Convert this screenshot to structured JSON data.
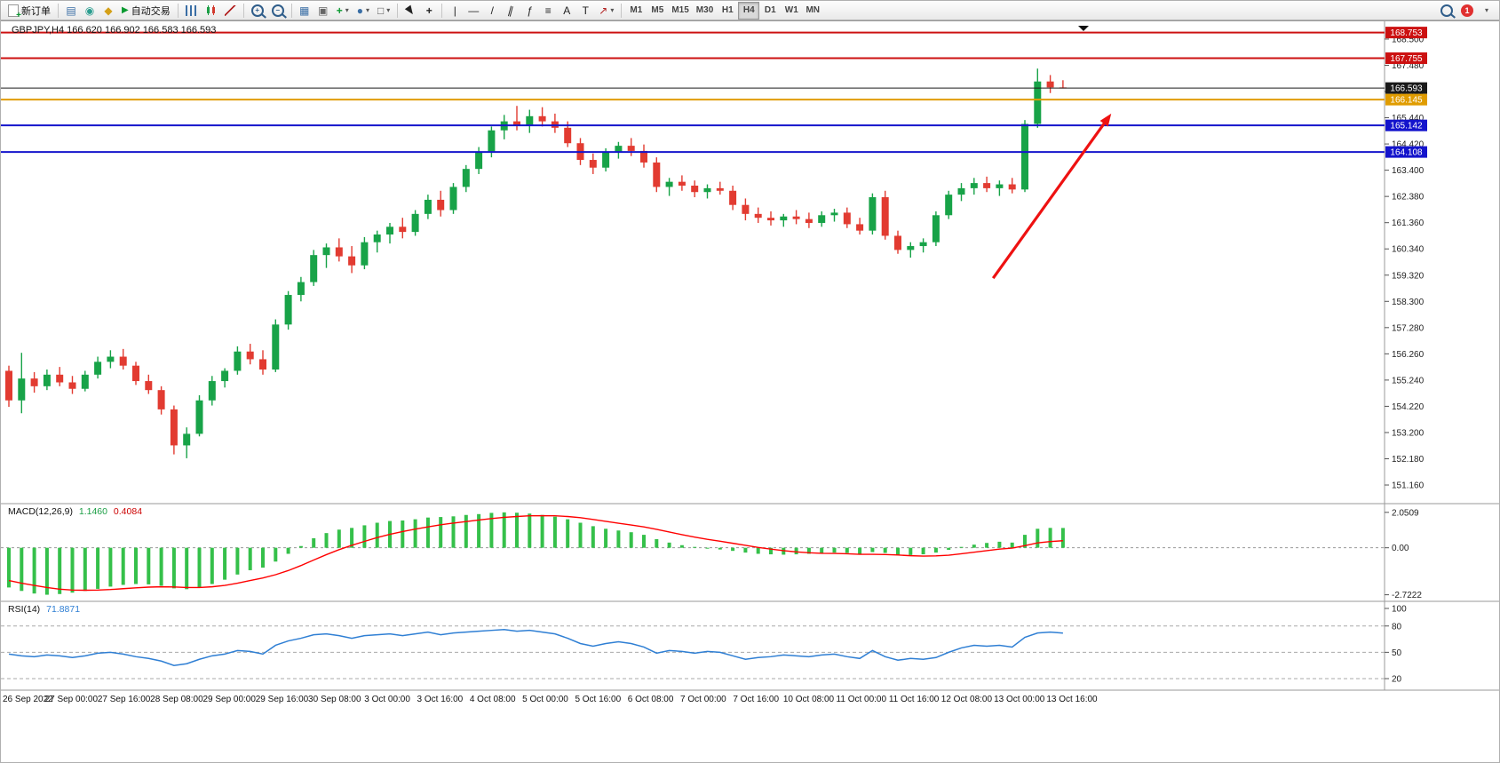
{
  "toolbar": {
    "new_order_label": "新订单",
    "autotrading_label": "自动交易",
    "timeframes": [
      "M1",
      "M5",
      "M15",
      "M30",
      "H1",
      "H4",
      "D1",
      "W1",
      "MN"
    ],
    "active_timeframe": "H4",
    "notification_count": "1"
  },
  "glyphs": {
    "plus": "+",
    "minus": "−",
    "play": "▶",
    "diamond": "◆",
    "grid": "▦",
    "dot": "◉",
    "tiles": "▣",
    "rows": "▤",
    "circle": "●",
    "square": "□",
    "cross": "+",
    "vline": "|",
    "hline": "—",
    "slash": "/",
    "parallel": "∥",
    "fibo": "ƒ",
    "list": "≡",
    "letter_a": "A",
    "letter_t": "T",
    "arrow_ne": "↗",
    "caret": "▾"
  },
  "chart": {
    "title": "GBPJPY,H4 166.620 166.902 166.583 166.593",
    "symbol": "GBPJPY",
    "timeframe": "H4",
    "current_price": "166.593",
    "levels": [
      {
        "value": 168.753,
        "label": "168.753",
        "color": "#cc1111",
        "width": 2
      },
      {
        "value": 167.755,
        "label": "167.755",
        "color": "#cc1111",
        "width": 2
      },
      {
        "value": 166.593,
        "label": "166.593",
        "color": "#1a1a1a",
        "width": 1
      },
      {
        "value": 166.145,
        "label": "166.145",
        "color": "#e09c00",
        "width": 2
      },
      {
        "value": 165.142,
        "label": "165.142",
        "color": "#1414cc",
        "width": 2
      },
      {
        "value": 164.108,
        "label": "164.108",
        "color": "#1414cc",
        "width": 2
      }
    ],
    "y_ticks": [
      "168.500",
      "167.480",
      "166.460",
      "165.440",
      "164.420",
      "163.400",
      "162.380",
      "161.360",
      "160.340",
      "159.320",
      "158.300",
      "157.280",
      "156.260",
      "155.240",
      "154.220",
      "153.200",
      "152.180",
      "151.160"
    ]
  },
  "indicators": {
    "macd": {
      "name": "MACD(12,26,9)",
      "main": "1.1460",
      "signal": "0.4084",
      "scale": [
        "2.0509",
        "0.00",
        "-2.7222"
      ]
    },
    "rsi": {
      "name": "RSI(14)",
      "value": "71.8871",
      "scale": [
        "100",
        "80",
        "50",
        "20"
      ],
      "guide_levels": [
        80,
        50,
        20
      ]
    }
  },
  "colors": {
    "up": "#18a348",
    "down": "#e23b31",
    "macd": "#35c04a",
    "signal": "#ff0000",
    "rsi": "#2f7fd4",
    "arrow": "#ee1111",
    "frame": "#9a9a9a",
    "axis_text": "#222222"
  },
  "time_axis": [
    "26 Sep 2022",
    "27 Sep 00:00",
    "27 Sep 16:00",
    "28 Sep 08:00",
    "29 Sep 00:00",
    "29 Sep 16:00",
    "30 Sep 08:00",
    "3 Oct 00:00",
    "3 Oct 16:00",
    "4 Oct 08:00",
    "5 Oct 00:00",
    "5 Oct 16:00",
    "6 Oct 08:00",
    "7 Oct 00:00",
    "7 Oct 16:00",
    "10 Oct 08:00",
    "11 Oct 00:00",
    "11 Oct 16:00",
    "12 Oct 08:00",
    "13 Oct 00:00",
    "13 Oct 16:00"
  ],
  "chart_data": [
    {
      "type": "candlestick",
      "symbol": "GBPJPY",
      "timeframe": "H4",
      "ylim": [
        150.47,
        169.12
      ],
      "candles": [
        [
          155.6,
          155.8,
          154.2,
          154.45
        ],
        [
          154.45,
          156.3,
          153.95,
          155.3
        ],
        [
          155.3,
          155.55,
          154.75,
          155.0
        ],
        [
          155.0,
          155.65,
          154.85,
          155.45
        ],
        [
          155.45,
          155.75,
          155.0,
          155.15
        ],
        [
          155.15,
          155.4,
          154.7,
          154.9
        ],
        [
          154.9,
          155.6,
          154.8,
          155.45
        ],
        [
          155.45,
          156.15,
          155.3,
          155.95
        ],
        [
          155.95,
          156.4,
          155.7,
          156.15
        ],
        [
          156.15,
          156.45,
          155.65,
          155.8
        ],
        [
          155.8,
          155.95,
          155.05,
          155.2
        ],
        [
          155.2,
          155.45,
          154.7,
          154.85
        ],
        [
          154.85,
          155.0,
          153.9,
          154.1
        ],
        [
          154.1,
          154.25,
          152.35,
          152.7
        ],
        [
          152.7,
          153.4,
          152.2,
          153.15
        ],
        [
          153.15,
          154.65,
          153.05,
          154.45
        ],
        [
          154.45,
          155.4,
          154.25,
          155.2
        ],
        [
          155.2,
          155.7,
          154.95,
          155.6
        ],
        [
          155.6,
          156.55,
          155.45,
          156.35
        ],
        [
          156.35,
          156.65,
          155.85,
          156.05
        ],
        [
          156.05,
          156.4,
          155.45,
          155.65
        ],
        [
          155.65,
          157.6,
          155.55,
          157.4
        ],
        [
          157.4,
          158.7,
          157.2,
          158.55
        ],
        [
          158.55,
          159.25,
          158.3,
          159.05
        ],
        [
          159.05,
          160.3,
          158.9,
          160.1
        ],
        [
          160.1,
          160.55,
          159.6,
          160.4
        ],
        [
          160.4,
          160.75,
          159.85,
          160.05
        ],
        [
          160.05,
          160.45,
          159.4,
          159.7
        ],
        [
          159.7,
          160.8,
          159.55,
          160.6
        ],
        [
          160.6,
          161.05,
          160.2,
          160.9
        ],
        [
          160.9,
          161.35,
          160.55,
          161.2
        ],
        [
          161.2,
          161.55,
          160.75,
          161.0
        ],
        [
          161.0,
          161.85,
          160.85,
          161.7
        ],
        [
          161.7,
          162.45,
          161.5,
          162.25
        ],
        [
          162.25,
          162.6,
          161.6,
          161.85
        ],
        [
          161.85,
          162.9,
          161.7,
          162.75
        ],
        [
          162.75,
          163.6,
          162.55,
          163.45
        ],
        [
          163.45,
          164.3,
          163.25,
          164.1
        ],
        [
          164.1,
          165.1,
          163.9,
          164.95
        ],
        [
          164.95,
          165.55,
          164.6,
          165.3
        ],
        [
          165.3,
          165.9,
          164.95,
          165.15
        ],
        [
          165.15,
          165.75,
          164.85,
          165.5
        ],
        [
          165.5,
          165.85,
          165.1,
          165.3
        ],
        [
          165.3,
          165.6,
          164.85,
          165.05
        ],
        [
          165.05,
          165.3,
          164.3,
          164.45
        ],
        [
          164.45,
          164.65,
          163.6,
          163.8
        ],
        [
          163.8,
          164.05,
          163.25,
          163.5
        ],
        [
          163.5,
          164.25,
          163.35,
          164.1
        ],
        [
          164.1,
          164.5,
          163.85,
          164.35
        ],
        [
          164.35,
          164.65,
          163.95,
          164.15
        ],
        [
          164.15,
          164.4,
          163.5,
          163.7
        ],
        [
          163.7,
          163.9,
          162.55,
          162.75
        ],
        [
          162.75,
          163.1,
          162.4,
          162.95
        ],
        [
          162.95,
          163.2,
          162.6,
          162.8
        ],
        [
          162.8,
          163.0,
          162.35,
          162.55
        ],
        [
          162.55,
          162.85,
          162.3,
          162.7
        ],
        [
          162.7,
          162.95,
          162.45,
          162.6
        ],
        [
          162.6,
          162.8,
          161.85,
          162.05
        ],
        [
          162.05,
          162.3,
          161.45,
          161.7
        ],
        [
          161.7,
          161.95,
          161.35,
          161.55
        ],
        [
          161.55,
          161.8,
          161.25,
          161.45
        ],
        [
          161.45,
          161.7,
          161.2,
          161.6
        ],
        [
          161.6,
          161.85,
          161.3,
          161.5
        ],
        [
          161.5,
          161.75,
          161.15,
          161.35
        ],
        [
          161.35,
          161.8,
          161.2,
          161.65
        ],
        [
          161.65,
          161.9,
          161.4,
          161.75
        ],
        [
          161.75,
          161.95,
          161.15,
          161.3
        ],
        [
          161.3,
          161.55,
          160.9,
          161.05
        ],
        [
          161.05,
          162.5,
          160.9,
          162.35
        ],
        [
          162.35,
          162.6,
          160.7,
          160.85
        ],
        [
          160.85,
          161.05,
          160.15,
          160.3
        ],
        [
          160.3,
          160.6,
          160.0,
          160.45
        ],
        [
          160.45,
          160.75,
          160.2,
          160.6
        ],
        [
          160.6,
          161.8,
          160.45,
          161.65
        ],
        [
          161.65,
          162.6,
          161.5,
          162.45
        ],
        [
          162.45,
          162.9,
          162.2,
          162.7
        ],
        [
          162.7,
          163.1,
          162.45,
          162.9
        ],
        [
          162.9,
          163.15,
          162.55,
          162.7
        ],
        [
          162.7,
          163.0,
          162.4,
          162.85
        ],
        [
          162.85,
          163.1,
          162.5,
          162.65
        ],
        [
          162.65,
          165.35,
          162.55,
          165.2
        ],
        [
          165.2,
          167.35,
          165.05,
          166.85
        ],
        [
          166.85,
          167.1,
          166.4,
          166.62
        ],
        [
          166.62,
          166.9,
          166.58,
          166.59
        ]
      ],
      "annotation": {
        "type": "trend-arrow",
        "from_index": 77.5,
        "from_price": 159.2,
        "to_index": 86.8,
        "to_price": 165.6
      }
    },
    {
      "type": "bar+line",
      "name": "MACD(12,26,9)",
      "ylim": [
        -2.7222,
        2.0509
      ],
      "histogram": [
        -2.3,
        -2.5,
        -2.65,
        -2.72,
        -2.68,
        -2.6,
        -2.5,
        -2.38,
        -2.25,
        -2.15,
        -2.1,
        -2.12,
        -2.2,
        -2.35,
        -2.4,
        -2.3,
        -2.1,
        -1.85,
        -1.55,
        -1.3,
        -1.15,
        -0.8,
        -0.35,
        0.1,
        0.55,
        0.85,
        1.05,
        1.15,
        1.3,
        1.45,
        1.55,
        1.58,
        1.65,
        1.75,
        1.78,
        1.82,
        1.9,
        1.95,
        2.02,
        2.05,
        2.03,
        1.98,
        1.9,
        1.8,
        1.65,
        1.45,
        1.25,
        1.1,
        1.0,
        0.9,
        0.75,
        0.5,
        0.3,
        0.15,
        0.05,
        -0.05,
        -0.1,
        -0.18,
        -0.28,
        -0.35,
        -0.38,
        -0.4,
        -0.38,
        -0.35,
        -0.32,
        -0.28,
        -0.3,
        -0.35,
        -0.25,
        -0.3,
        -0.4,
        -0.42,
        -0.38,
        -0.28,
        -0.12,
        0.05,
        0.18,
        0.28,
        0.35,
        0.3,
        0.75,
        1.1,
        1.15,
        1.146
      ],
      "signal_line": [
        -1.9,
        -2.05,
        -2.18,
        -2.3,
        -2.4,
        -2.45,
        -2.46,
        -2.45,
        -2.42,
        -2.37,
        -2.32,
        -2.28,
        -2.26,
        -2.27,
        -2.3,
        -2.3,
        -2.26,
        -2.18,
        -2.05,
        -1.9,
        -1.75,
        -1.56,
        -1.32,
        -1.03,
        -0.71,
        -0.4,
        -0.11,
        0.14,
        0.37,
        0.59,
        0.78,
        0.94,
        1.08,
        1.21,
        1.33,
        1.43,
        1.52,
        1.61,
        1.69,
        1.76,
        1.81,
        1.85,
        1.86,
        1.85,
        1.81,
        1.74,
        1.64,
        1.53,
        1.42,
        1.32,
        1.21,
        1.07,
        0.91,
        0.76,
        0.62,
        0.49,
        0.38,
        0.26,
        0.14,
        0.02,
        -0.08,
        -0.17,
        -0.24,
        -0.29,
        -0.32,
        -0.33,
        -0.35,
        -0.38,
        -0.38,
        -0.39,
        -0.42,
        -0.46,
        -0.48,
        -0.47,
        -0.43,
        -0.35,
        -0.26,
        -0.17,
        -0.08,
        -0.02,
        0.12,
        0.28,
        0.36,
        0.4084
      ]
    },
    {
      "type": "line",
      "name": "RSI(14)",
      "ylim": [
        0,
        100
      ],
      "guide_levels": [
        80,
        50,
        20
      ],
      "values": [
        48,
        46,
        45,
        47,
        46,
        44,
        46,
        49,
        50,
        48,
        45,
        43,
        40,
        35,
        37,
        42,
        46,
        48,
        52,
        51,
        48,
        58,
        63,
        66,
        70,
        71,
        69,
        66,
        69,
        70,
        71,
        69,
        71,
        73,
        70,
        72,
        73,
        74,
        75,
        76,
        74,
        75,
        73,
        71,
        66,
        60,
        57,
        60,
        62,
        60,
        56,
        49,
        52,
        51,
        49,
        51,
        50,
        46,
        42,
        44,
        45,
        47,
        46,
        45,
        47,
        48,
        45,
        43,
        52,
        45,
        41,
        43,
        42,
        44,
        50,
        55,
        58,
        57,
        58,
        56,
        67,
        72,
        73,
        71.8871
      ]
    }
  ]
}
